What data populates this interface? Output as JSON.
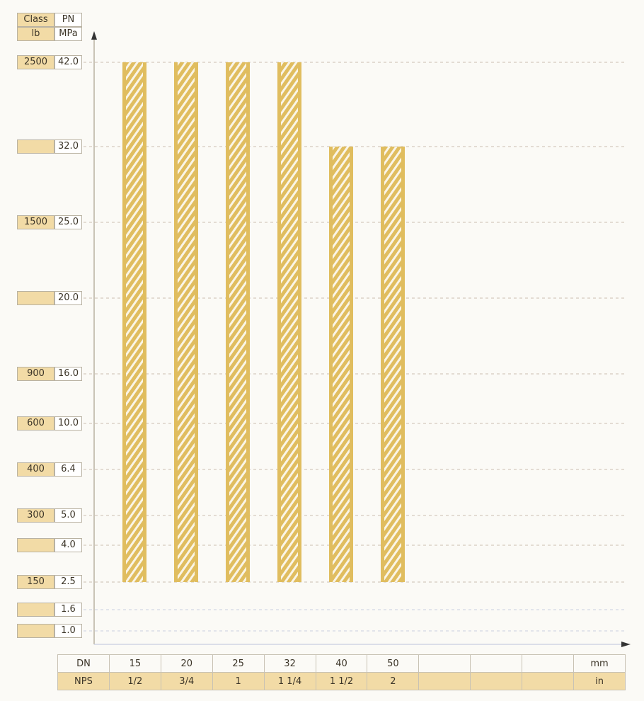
{
  "chart_data": {
    "type": "bar",
    "header": {
      "class": "Class",
      "pn": "PN",
      "class_unit": "lb",
      "pn_unit": "MPa"
    },
    "y_ticks": [
      {
        "class": "2500",
        "pn": "42.0"
      },
      {
        "class": "",
        "pn": "32.0"
      },
      {
        "class": "1500",
        "pn": "25.0"
      },
      {
        "class": "",
        "pn": "20.0"
      },
      {
        "class": "900",
        "pn": "16.0"
      },
      {
        "class": "600",
        "pn": "10.0"
      },
      {
        "class": "400",
        "pn": "6.4"
      },
      {
        "class": "300",
        "pn": "5.0"
      },
      {
        "class": "",
        "pn": "4.0"
      },
      {
        "class": "150",
        "pn": "2.5"
      },
      {
        "class": "",
        "pn": "1.6"
      },
      {
        "class": "",
        "pn": "1.0"
      }
    ],
    "y_scale": "categorical (non-linear)",
    "x_table": {
      "dn_label": "DN",
      "nps_label": "NPS",
      "dn_unit": "mm",
      "nps_unit": "in",
      "dn": [
        "15",
        "20",
        "25",
        "32",
        "40",
        "50",
        "",
        "",
        ""
      ],
      "nps": [
        "1/2",
        "3/4",
        "1",
        "1 1/4",
        "1 1/2",
        "2",
        "",
        "",
        ""
      ]
    },
    "series": [
      {
        "bars": [
          {
            "dn": "15",
            "min_pn": 2.5,
            "max_pn": 42.0
          },
          {
            "dn": "20",
            "min_pn": 2.5,
            "max_pn": 42.0
          },
          {
            "dn": "25",
            "min_pn": 2.5,
            "max_pn": 42.0
          },
          {
            "dn": "32",
            "min_pn": 2.5,
            "max_pn": 42.0
          },
          {
            "dn": "40",
            "min_pn": 2.5,
            "max_pn": 32.0
          },
          {
            "dn": "50",
            "min_pn": 2.5,
            "max_pn": 32.0
          }
        ]
      }
    ],
    "grid": true,
    "bar_color": "#e0bd5f"
  }
}
